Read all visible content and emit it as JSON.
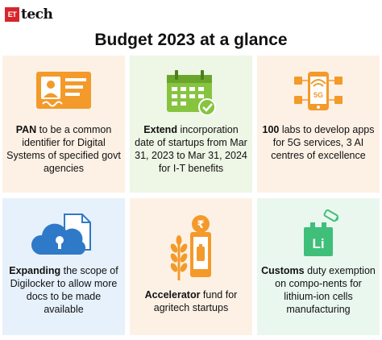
{
  "brand": {
    "et": "ET",
    "tech": "tech"
  },
  "title": "Budget 2023 at a glance",
  "cards": [
    {
      "icon": "id-card-icon",
      "bold": "PAN",
      "rest": " to be a common identifier for Digital Systems of specified govt agencies"
    },
    {
      "icon": "calendar-check-icon",
      "bold": "Extend",
      "rest": " incorporation date of startups from Mar 31, 2023 to Mar 31, 2024 for I-T benefits"
    },
    {
      "icon": "phone-5g-icon",
      "bold": "100",
      "rest": " labs to develop apps for 5G services, 3 AI centres of excellence",
      "icon_text": "5G"
    },
    {
      "icon": "cloud-lock-document-icon",
      "bold": "Expanding",
      "rest": " the scope of Digilocker to allow more docs to be made available"
    },
    {
      "icon": "wheat-phone-rupee-icon",
      "bold": "Accelerator",
      "rest": " fund for agritech startups",
      "icon_text": "₹"
    },
    {
      "icon": "lithium-battery-icon",
      "bold": "Customs",
      "rest": " duty exemption on compo-nents for lithium-ion cells manufacturing",
      "icon_text": "Li"
    }
  ],
  "colors": {
    "peach_bg": "#fdf1e6",
    "green_bg": "#eef6e6",
    "blue_bg": "#e7f1fb",
    "mint_bg": "#eaf7ef",
    "orange": "#f39a2a",
    "green": "#86c440",
    "blue": "#2f79c9",
    "mint": "#3fbf7a",
    "brand_red": "#d7262b"
  }
}
